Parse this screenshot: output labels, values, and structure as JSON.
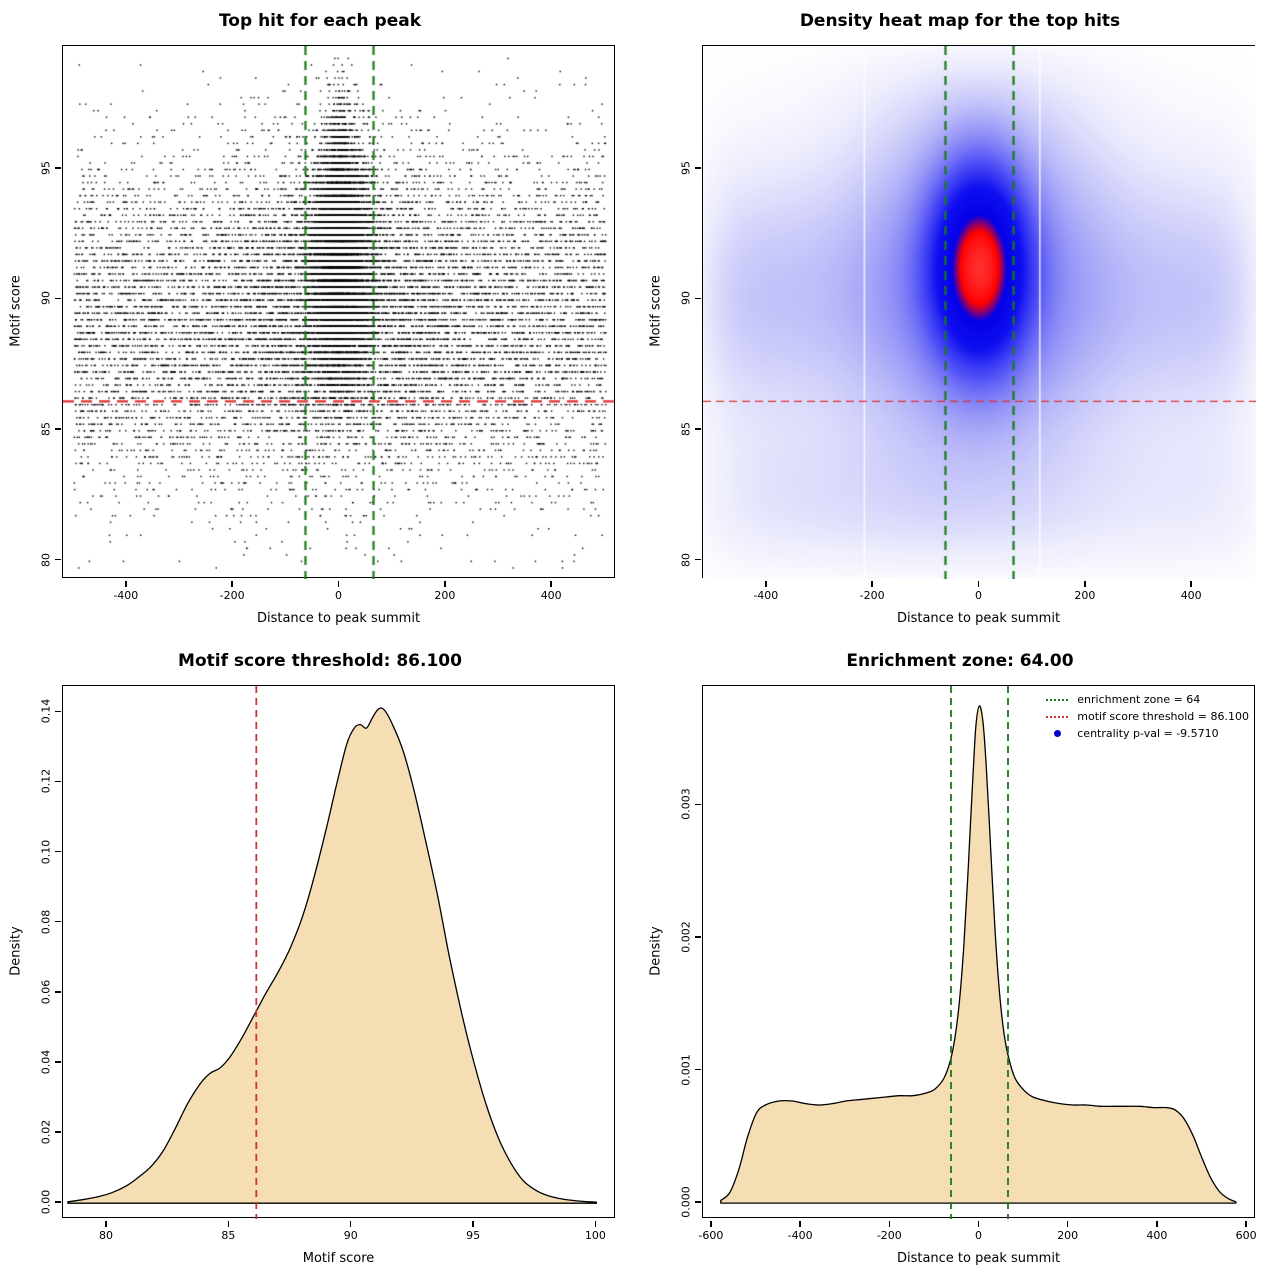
{
  "figure": {
    "background": "#ffffff"
  },
  "chart_data": [
    {
      "id": "top-hits-scatter",
      "type": "scatter",
      "title": "Top hit for each peak",
      "xlabel": "Distance to peak summit",
      "ylabel": "Motif score",
      "xlim": [
        -520,
        520
      ],
      "ylim": [
        79.3,
        99.7
      ],
      "x_ticks": [
        {
          "v": -400,
          "label": "-400"
        },
        {
          "v": -200,
          "label": "-200"
        },
        {
          "v": 0,
          "label": "0"
        },
        {
          "v": 200,
          "label": "200"
        },
        {
          "v": 400,
          "label": "400"
        }
      ],
      "y_ticks": [
        {
          "v": 80,
          "label": "80"
        },
        {
          "v": 85,
          "label": "85"
        },
        {
          "v": 90,
          "label": "90"
        },
        {
          "v": 95,
          "label": "95"
        }
      ],
      "point_color": "#000000",
      "point_model": {
        "n_points": 22000,
        "y_quantization": 0.25,
        "x_range": [
          -500,
          500
        ],
        "y_range": [
          79.6,
          99.4
        ],
        "components": [
          {
            "weight": 0.44,
            "x": {
              "dist": "uniform",
              "a": -500,
              "b": 500
            },
            "y": {
              "dist": "normal",
              "m": 89.2,
              "s": 3.2
            }
          },
          {
            "weight": 0.14,
            "x": {
              "dist": "normal",
              "m": 0,
              "s": 125
            },
            "y": {
              "dist": "normal",
              "m": 90.2,
              "s": 2.9
            }
          },
          {
            "weight": 0.38,
            "x": {
              "dist": "normal",
              "m": 0,
              "s": 27
            },
            "y": {
              "dist": "normal",
              "m": 91.2,
              "s": 2.2
            }
          },
          {
            "weight": 0.04,
            "x": {
              "dist": "normal",
              "m": 0,
              "s": 13
            },
            "y": {
              "dist": "normal",
              "m": 94.5,
              "s": 2.0
            }
          }
        ]
      },
      "annotations": {
        "hline": {
          "y": 86.1,
          "color": "#e03131",
          "style": "dashed"
        },
        "vlines": {
          "x": [
            -64,
            64
          ],
          "color": "#1a7a1a",
          "style": "dashed"
        }
      }
    },
    {
      "id": "top-hits-heatmap",
      "type": "heatmap",
      "title": "Density heat map for the top hits",
      "xlabel": "Distance to peak summit",
      "ylabel": "Motif score",
      "xlim": [
        -520,
        520
      ],
      "ylim": [
        79.3,
        99.7
      ],
      "x_ticks": [
        {
          "v": -400,
          "label": "-400"
        },
        {
          "v": -200,
          "label": "-200"
        },
        {
          "v": 0,
          "label": "0"
        },
        {
          "v": 200,
          "label": "200"
        },
        {
          "v": 400,
          "label": "400"
        }
      ],
      "y_ticks": [
        {
          "v": 80,
          "label": "80"
        },
        {
          "v": 85,
          "label": "85"
        },
        {
          "v": 90,
          "label": "90"
        },
        {
          "v": 95,
          "label": "95"
        }
      ],
      "density_model": {
        "center": {
          "w": 1.0,
          "cx": 0,
          "sx": 58,
          "cy": 91.3,
          "sy": 2.4
        },
        "halo": {
          "w": 0.2,
          "cx": 0,
          "sx": 150,
          "cy": 91.0,
          "sy": 4.6
        },
        "band": {
          "w": 0.12,
          "cy": 90.1,
          "sy": 3.1,
          "wave_period": 85,
          "wave_amp": 0.22,
          "wave_phase": 0
        },
        "bottom_band": {
          "w": 0.05,
          "cy": 82.3,
          "sy": 2.1,
          "wave_period": 160,
          "wave_amp": 0.35,
          "wave_phase": 1.2
        }
      },
      "gamma": 0.75,
      "colormap": [
        [
          0,
          255,
          255,
          255
        ],
        [
          0.06,
          236,
          236,
          253
        ],
        [
          0.2,
          173,
          173,
          248
        ],
        [
          0.42,
          80,
          80,
          246
        ],
        [
          0.6,
          15,
          15,
          240
        ],
        [
          0.8,
          5,
          0,
          232
        ],
        [
          0.9,
          255,
          0,
          0
        ],
        [
          1,
          255,
          45,
          45
        ]
      ],
      "white_stripes_x": [
        -218,
        112
      ],
      "annotations": {
        "hline": {
          "y": 86.1,
          "color": "#e03131",
          "style": "dashed"
        },
        "vlines": {
          "x": [
            -64,
            64
          ],
          "color": "#1a7a1a",
          "style": "dashed"
        }
      }
    },
    {
      "id": "motif-score-density",
      "type": "area",
      "title": "Motif score threshold: 86.100",
      "xlabel": "Motif score",
      "ylabel": "Density",
      "xlim": [
        78.2,
        100.8
      ],
      "ylim": [
        -0.0045,
        0.1475
      ],
      "x_ticks": [
        {
          "v": 80,
          "label": "80"
        },
        {
          "v": 85,
          "label": "85"
        },
        {
          "v": 90,
          "label": "90"
        },
        {
          "v": 95,
          "label": "95"
        },
        {
          "v": 100,
          "label": "100"
        }
      ],
      "y_ticks": [
        {
          "v": 0.0,
          "label": "0.00"
        },
        {
          "v": 0.02,
          "label": "0.02"
        },
        {
          "v": 0.04,
          "label": "0.04"
        },
        {
          "v": 0.06,
          "label": "0.06"
        },
        {
          "v": 0.08,
          "label": "0.08"
        },
        {
          "v": 0.1,
          "label": "0.10"
        },
        {
          "v": 0.12,
          "label": "0.12"
        },
        {
          "v": 0.14,
          "label": "0.14"
        }
      ],
      "fill": "#f5deb3",
      "curve": {
        "x": [
          78.4,
          79.0,
          79.6,
          80.2,
          80.8,
          81.3,
          81.8,
          82.3,
          82.8,
          83.3,
          83.8,
          84.2,
          84.6,
          85.0,
          85.5,
          86.0,
          86.5,
          87.0,
          87.5,
          88.0,
          88.5,
          89.0,
          89.4,
          89.8,
          90.1,
          90.35,
          90.6,
          90.85,
          91.1,
          91.35,
          91.7,
          92.1,
          92.5,
          93.0,
          93.5,
          94.0,
          94.5,
          95.0,
          95.5,
          96.0,
          96.5,
          97.0,
          97.5,
          98.0,
          98.6,
          99.3,
          100.0
        ],
        "y": [
          0.0004,
          0.001,
          0.0018,
          0.003,
          0.005,
          0.0075,
          0.0105,
          0.015,
          0.0215,
          0.0285,
          0.034,
          0.037,
          0.0385,
          0.0415,
          0.047,
          0.0535,
          0.06,
          0.066,
          0.073,
          0.082,
          0.094,
          0.108,
          0.12,
          0.131,
          0.1355,
          0.1365,
          0.1355,
          0.1385,
          0.141,
          0.1405,
          0.136,
          0.129,
          0.119,
          0.104,
          0.088,
          0.07,
          0.054,
          0.04,
          0.028,
          0.0185,
          0.0115,
          0.0065,
          0.0038,
          0.0022,
          0.0012,
          0.0006,
          0.0003
        ]
      },
      "annotations": {
        "vlines": {
          "x": [
            86.1
          ],
          "color": "#cc3333",
          "style": "dashed"
        }
      }
    },
    {
      "id": "enrichment-zone-density",
      "type": "area",
      "title": "Enrichment zone: 64.00",
      "xlabel": "Distance to peak summit",
      "ylabel": "Density",
      "xlim": [
        -620,
        620
      ],
      "ylim": [
        -0.00012,
        0.0039
      ],
      "x_ticks": [
        {
          "v": -600,
          "label": "-600"
        },
        {
          "v": -400,
          "label": "-400"
        },
        {
          "v": -200,
          "label": "-200"
        },
        {
          "v": 0,
          "label": "0"
        },
        {
          "v": 200,
          "label": "200"
        },
        {
          "v": 400,
          "label": "400"
        },
        {
          "v": 600,
          "label": "600"
        }
      ],
      "y_ticks": [
        {
          "v": 0.0,
          "label": "0.000"
        },
        {
          "v": 0.001,
          "label": "0.001"
        },
        {
          "v": 0.002,
          "label": "0.002"
        },
        {
          "v": 0.003,
          "label": "0.003"
        }
      ],
      "fill": "#f5deb3",
      "curve": {
        "x": [
          -580,
          -560,
          -540,
          -520,
          -500,
          -480,
          -450,
          -420,
          -390,
          -360,
          -330,
          -300,
          -270,
          -240,
          -210,
          -180,
          -150,
          -120,
          -100,
          -80,
          -65,
          -55,
          -45,
          -35,
          -25,
          -15,
          -8,
          0,
          8,
          15,
          25,
          35,
          45,
          55,
          65,
          80,
          100,
          120,
          150,
          180,
          210,
          240,
          270,
          300,
          330,
          360,
          390,
          420,
          440,
          460,
          480,
          500,
          520,
          540,
          560,
          575
        ],
        "y": [
          2e-05,
          8e-05,
          0.00025,
          0.0005,
          0.00068,
          0.00074,
          0.00077,
          0.00077,
          0.00075,
          0.00074,
          0.00075,
          0.00077,
          0.00078,
          0.00079,
          0.0008,
          0.00081,
          0.00081,
          0.00083,
          0.00086,
          0.00094,
          0.00108,
          0.00125,
          0.00152,
          0.00195,
          0.00255,
          0.0032,
          0.0036,
          0.00375,
          0.00362,
          0.0033,
          0.00268,
          0.00205,
          0.00158,
          0.00128,
          0.0011,
          0.00094,
          0.00085,
          0.0008,
          0.00077,
          0.00075,
          0.00074,
          0.00074,
          0.00073,
          0.00073,
          0.00073,
          0.00073,
          0.00072,
          0.00072,
          0.0007,
          0.00063,
          0.0005,
          0.00033,
          0.00018,
          8e-05,
          3e-05,
          1e-05
        ]
      },
      "annotations": {
        "vlines": {
          "x": [
            -64,
            64
          ],
          "color": "#1a7a1a",
          "style": "dashed"
        }
      },
      "legend": [
        {
          "label": "enrichment zone = 64",
          "marker": "dotted-line",
          "color": "#1a7a1a"
        },
        {
          "label": "motif score threshold = 86.100",
          "marker": "dotted-line",
          "color": "#cc3333"
        },
        {
          "label": "centrality p-val = -9.5710",
          "marker": "point",
          "color": "#0000cc"
        }
      ]
    }
  ]
}
